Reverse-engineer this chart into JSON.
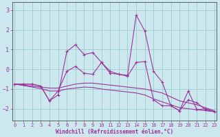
{
  "xlabel": "Windchill (Refroidissement éolien,°C)",
  "background_color": "#cce8ee",
  "line_color": "#993399",
  "grid_color": "#99cccc",
  "ylim": [
    -2.6,
    3.4
  ],
  "xlim": [
    -0.3,
    23.3
  ],
  "xticks": [
    0,
    1,
    2,
    3,
    4,
    5,
    6,
    7,
    8,
    9,
    10,
    11,
    12,
    13,
    14,
    15,
    16,
    17,
    18,
    19,
    20,
    21,
    22,
    23
  ],
  "yticks": [
    -2,
    -1,
    0,
    1,
    2,
    3
  ],
  "series_with_markers": [
    [
      -0.75,
      -0.75,
      -0.75,
      -0.85,
      -1.6,
      -1.3,
      0.9,
      1.25,
      0.75,
      0.85,
      0.35,
      -0.2,
      -0.25,
      -0.3,
      2.75,
      1.95,
      -0.1,
      -0.65,
      -1.85,
      -2.1,
      -1.1,
      -2.05,
      -2.0,
      -2.15
    ],
    [
      -0.75,
      -0.75,
      -0.75,
      -0.85,
      -1.6,
      -1.1,
      -0.1,
      0.15,
      -0.2,
      -0.25,
      0.35,
      -0.1,
      -0.25,
      -0.35,
      0.35,
      0.4,
      -1.55,
      -1.85,
      -1.85,
      -2.1,
      -1.55,
      -1.7,
      -2.05,
      -2.15
    ]
  ],
  "series_flat": [
    [
      -0.75,
      -0.8,
      -0.85,
      -0.9,
      -0.95,
      -0.95,
      -0.85,
      -0.75,
      -0.7,
      -0.7,
      -0.75,
      -0.8,
      -0.85,
      -0.9,
      -0.95,
      -1.0,
      -1.1,
      -1.2,
      -1.4,
      -1.6,
      -1.7,
      -1.8,
      -1.95,
      -2.1
    ],
    [
      -0.75,
      -0.82,
      -0.9,
      -0.98,
      -1.1,
      -1.1,
      -1.0,
      -0.95,
      -0.9,
      -0.92,
      -1.0,
      -1.05,
      -1.1,
      -1.15,
      -1.2,
      -1.3,
      -1.5,
      -1.65,
      -1.8,
      -1.95,
      -2.0,
      -2.05,
      -2.1,
      -2.15
    ]
  ]
}
